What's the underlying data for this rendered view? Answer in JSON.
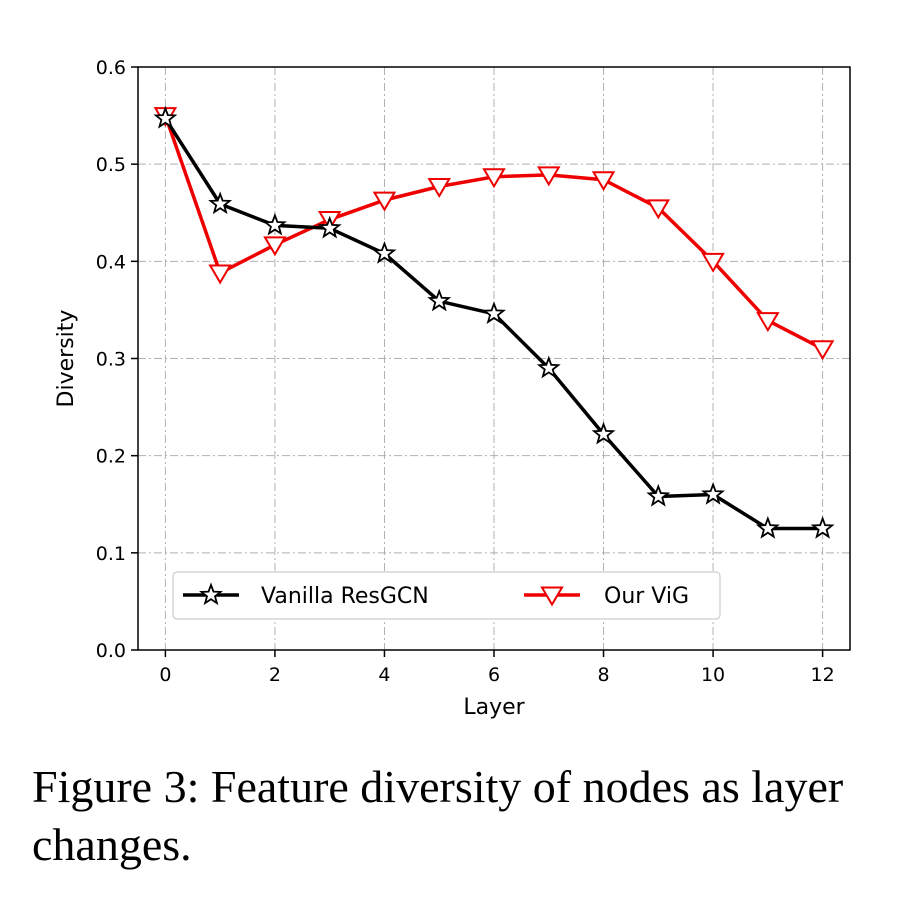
{
  "chart_data": {
    "type": "line",
    "xlabel": "Layer",
    "ylabel": "Diversity",
    "xlim": [
      -0.5,
      12.5
    ],
    "ylim": [
      0.0,
      0.6
    ],
    "xticks": [
      0,
      2,
      4,
      6,
      8,
      10,
      12
    ],
    "yticks": [
      0.0,
      0.1,
      0.2,
      0.3,
      0.4,
      0.5,
      0.6
    ],
    "xtick_labels": [
      "0",
      "2",
      "4",
      "6",
      "8",
      "10",
      "12"
    ],
    "ytick_labels": [
      "0.0",
      "0.1",
      "0.2",
      "0.3",
      "0.4",
      "0.5",
      "0.6"
    ],
    "grid": true,
    "legend_position": "lower-left",
    "x": [
      0,
      1,
      2,
      3,
      4,
      5,
      6,
      7,
      8,
      9,
      10,
      11,
      12
    ],
    "series": [
      {
        "name": "Vanilla ResGCN",
        "color": "#000000",
        "marker": "star",
        "values": [
          0.547,
          0.459,
          0.437,
          0.434,
          0.408,
          0.359,
          0.346,
          0.29,
          0.222,
          0.158,
          0.16,
          0.125,
          0.125
        ]
      },
      {
        "name": "Our ViG",
        "color": "#ee0000",
        "marker": "triangle-down",
        "values": [
          0.55,
          0.388,
          0.417,
          0.443,
          0.463,
          0.477,
          0.487,
          0.489,
          0.484,
          0.455,
          0.4,
          0.339,
          0.31
        ]
      }
    ]
  },
  "caption": "Figure 3: Feature diversity of nodes as layer changes."
}
